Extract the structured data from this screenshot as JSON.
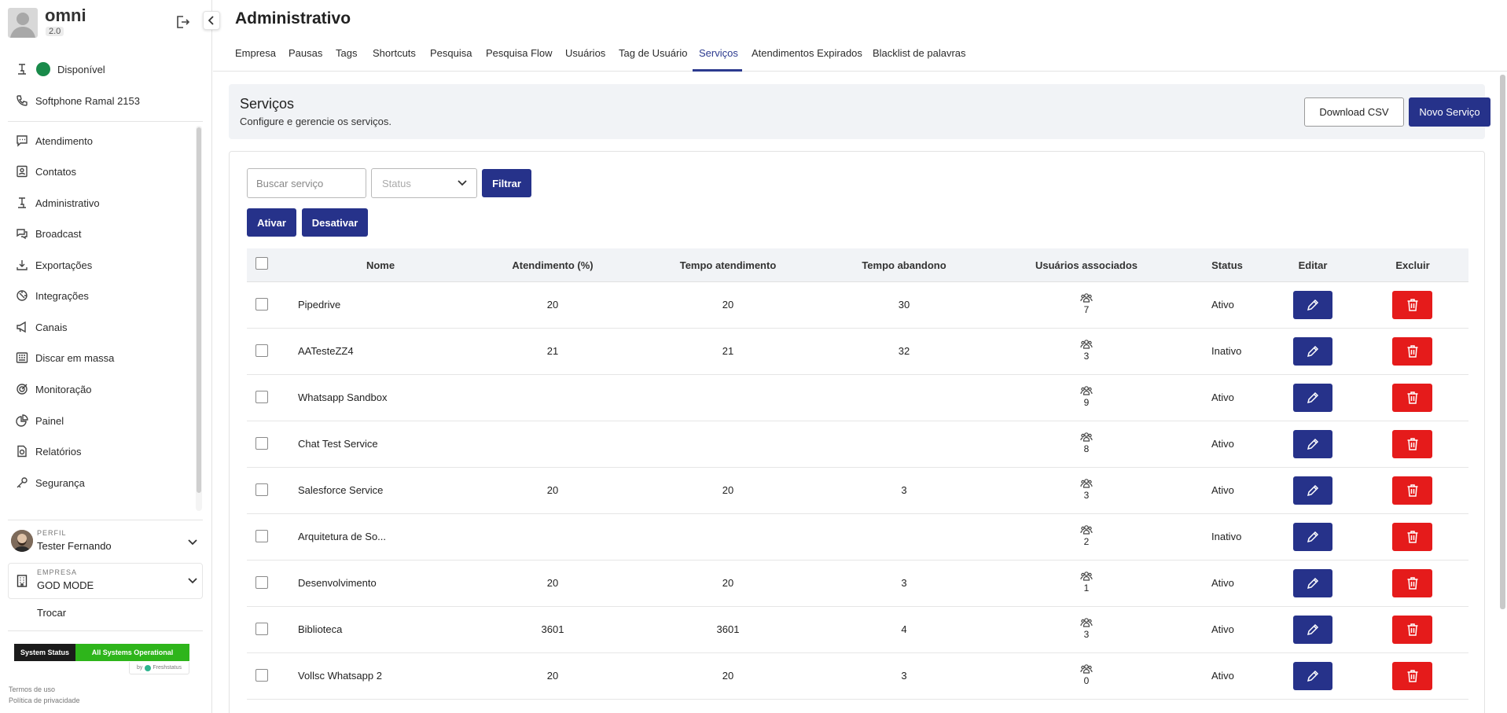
{
  "app": {
    "name": "omni",
    "version": "2.0"
  },
  "sidebar": {
    "status_label": "Disponível",
    "softphone_label": "Softphone Ramal 2153",
    "items": [
      {
        "label": "Atendimento",
        "icon": "chat-bubble-icon"
      },
      {
        "label": "Contatos",
        "icon": "contacts-icon"
      },
      {
        "label": "Administrativo",
        "icon": "desk-lamp-icon"
      },
      {
        "label": "Broadcast",
        "icon": "broadcast-icon"
      },
      {
        "label": "Exportações",
        "icon": "download-icon"
      },
      {
        "label": "Integrações",
        "icon": "integration-icon"
      },
      {
        "label": "Canais",
        "icon": "megaphone-icon"
      },
      {
        "label": "Discar em massa",
        "icon": "dialer-icon"
      },
      {
        "label": "Monitoração",
        "icon": "target-icon"
      },
      {
        "label": "Painel",
        "icon": "pie-chart-icon"
      },
      {
        "label": "Relatórios",
        "icon": "report-icon"
      },
      {
        "label": "Segurança",
        "icon": "key-icon"
      }
    ],
    "profile": {
      "label": "PERFIL",
      "name": "Tester Fernando"
    },
    "company": {
      "label": "EMPRESA",
      "name": "GOD MODE"
    },
    "switch_label": "Trocar",
    "system_status": {
      "label": "System Status",
      "value": "All Systems Operational",
      "by": "by",
      "provider": "Freshstatus",
      "ok_color": "#2eb51b"
    },
    "footer": {
      "terms": "Termos de uso",
      "privacy": "Política de privacidade"
    }
  },
  "page": {
    "title": "Administrativo",
    "tabs": [
      "Empresa",
      "Pausas",
      "Tags",
      "Shortcuts",
      "Pesquisa",
      "Pesquisa Flow",
      "Usuários",
      "Tag de Usuário",
      "Serviços",
      "Atendimentos Expirados",
      "Blacklist de palavras"
    ],
    "active_tab": "Serviços"
  },
  "section": {
    "title": "Serviços",
    "subtitle": "Configure e gerencie os serviços.",
    "download_label": "Download CSV",
    "new_label": "Novo Serviço"
  },
  "filters": {
    "search_placeholder": "Buscar serviço",
    "status_placeholder": "Status",
    "filter_label": "Filtrar",
    "activate_label": "Ativar",
    "deactivate_label": "Desativar"
  },
  "table": {
    "columns": [
      "Nome",
      "Atendimento (%)",
      "Tempo atendimento",
      "Tempo abandono",
      "Usuários associados",
      "Status",
      "Editar",
      "Excluir"
    ],
    "rows": [
      {
        "name": "Pipedrive",
        "pct": "20",
        "t_atend": "20",
        "t_aband": "30",
        "users": "7",
        "status": "Ativo"
      },
      {
        "name": "AATesteZZ4",
        "pct": "21",
        "t_atend": "21",
        "t_aband": "32",
        "users": "3",
        "status": "Inativo"
      },
      {
        "name": "Whatsapp Sandbox",
        "pct": "",
        "t_atend": "",
        "t_aband": "",
        "users": "9",
        "status": "Ativo"
      },
      {
        "name": "Chat Test Service",
        "pct": "",
        "t_atend": "",
        "t_aband": "",
        "users": "8",
        "status": "Ativo"
      },
      {
        "name": "Salesforce Service",
        "pct": "20",
        "t_atend": "20",
        "t_aband": "3",
        "users": "3",
        "status": "Ativo"
      },
      {
        "name": "Arquitetura de So...",
        "pct": "",
        "t_atend": "",
        "t_aband": "",
        "users": "2",
        "status": "Inativo"
      },
      {
        "name": "Desenvolvimento",
        "pct": "20",
        "t_atend": "20",
        "t_aband": "3",
        "users": "1",
        "status": "Ativo"
      },
      {
        "name": "Biblioteca",
        "pct": "3601",
        "t_atend": "3601",
        "t_aband": "4",
        "users": "3",
        "status": "Ativo"
      },
      {
        "name": "Vollsc Whatsapp 2",
        "pct": "20",
        "t_atend": "20",
        "t_aband": "3",
        "users": "0",
        "status": "Ativo"
      }
    ]
  },
  "colors": {
    "primary": "#26328a",
    "danger": "#e51b1b",
    "available": "#198a4a"
  }
}
